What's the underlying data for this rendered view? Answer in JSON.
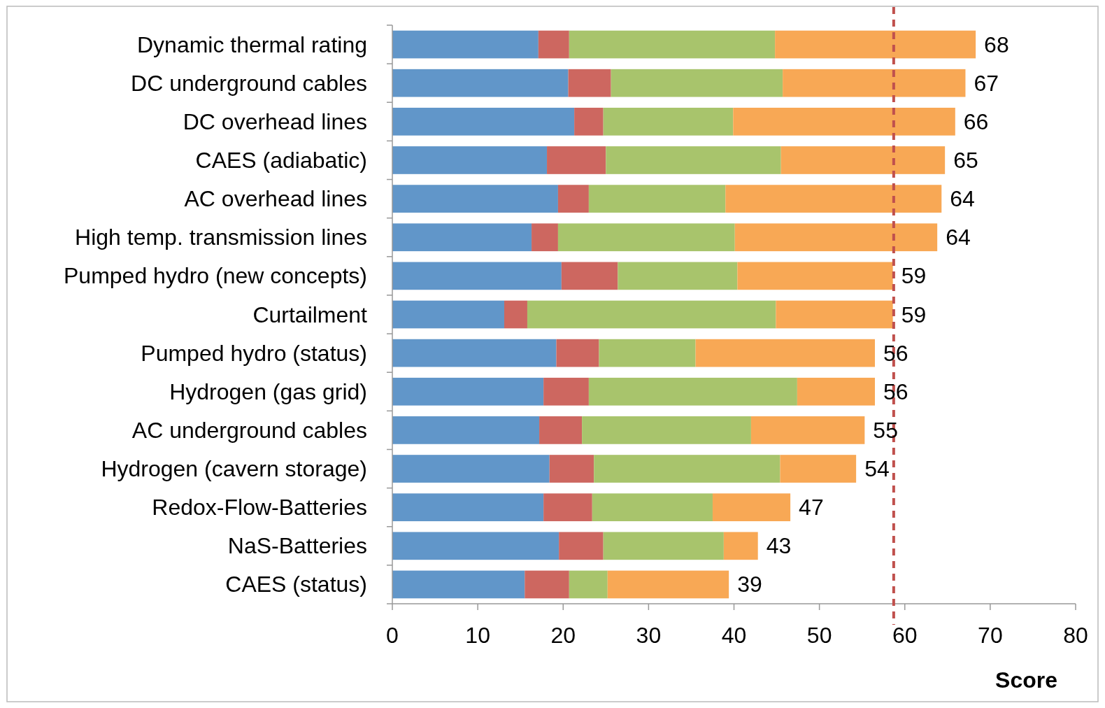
{
  "chart_data": {
    "type": "bar",
    "orientation": "horizontal",
    "stacked": true,
    "xlabel": "Score",
    "categories": [
      "Dynamic thermal rating",
      "DC underground cables",
      "DC overhead lines",
      "CAES (adiabatic)",
      "AC overhead lines",
      "High temp. transmission lines",
      "Pumped hydro (new concepts)",
      "Curtailment",
      "Pumped hydro (status)",
      "Hydrogen (gas grid)",
      "AC underground cables",
      "Hydrogen (cavern storage)",
      "Redox-Flow-Batteries",
      "NaS-Batteries",
      "CAES (status)"
    ],
    "series": [
      {
        "color": "#6196c9",
        "values": [
          17.1,
          20.6,
          21.3,
          18.1,
          19.4,
          16.3,
          19.8,
          13.1,
          19.2,
          17.7,
          17.2,
          18.4,
          17.7,
          19.5,
          15.5
        ]
      },
      {
        "color": "#cd6760",
        "values": [
          3.6,
          5.0,
          3.4,
          6.9,
          3.6,
          3.1,
          6.6,
          2.7,
          5.0,
          5.3,
          5.0,
          5.2,
          5.7,
          5.2,
          5.2
        ]
      },
      {
        "color": "#a8c46c",
        "values": [
          24.1,
          20.1,
          15.2,
          20.5,
          16.0,
          20.7,
          14.0,
          29.1,
          11.3,
          24.4,
          19.8,
          21.8,
          14.1,
          14.1,
          4.5
        ]
      },
      {
        "color": "#f8a855",
        "values": [
          23.5,
          21.4,
          26.0,
          19.2,
          25.3,
          23.7,
          18.2,
          13.7,
          21.0,
          9.1,
          13.3,
          8.9,
          9.1,
          4.0,
          14.2
        ]
      }
    ],
    "totals": [
      "68",
      "67",
      "66",
      "65",
      "64",
      "64",
      "59",
      "59",
      "56",
      "56",
      "55",
      "54",
      "47",
      "43",
      "39"
    ],
    "xlim": [
      0,
      80
    ],
    "xticks": [
      0,
      10,
      20,
      30,
      40,
      50,
      60,
      70,
      80
    ],
    "ref_lines": [
      {
        "axis": "x",
        "value": 58.7,
        "color": "#c0504d",
        "line_style": "dashed"
      }
    ],
    "grid": false
  }
}
